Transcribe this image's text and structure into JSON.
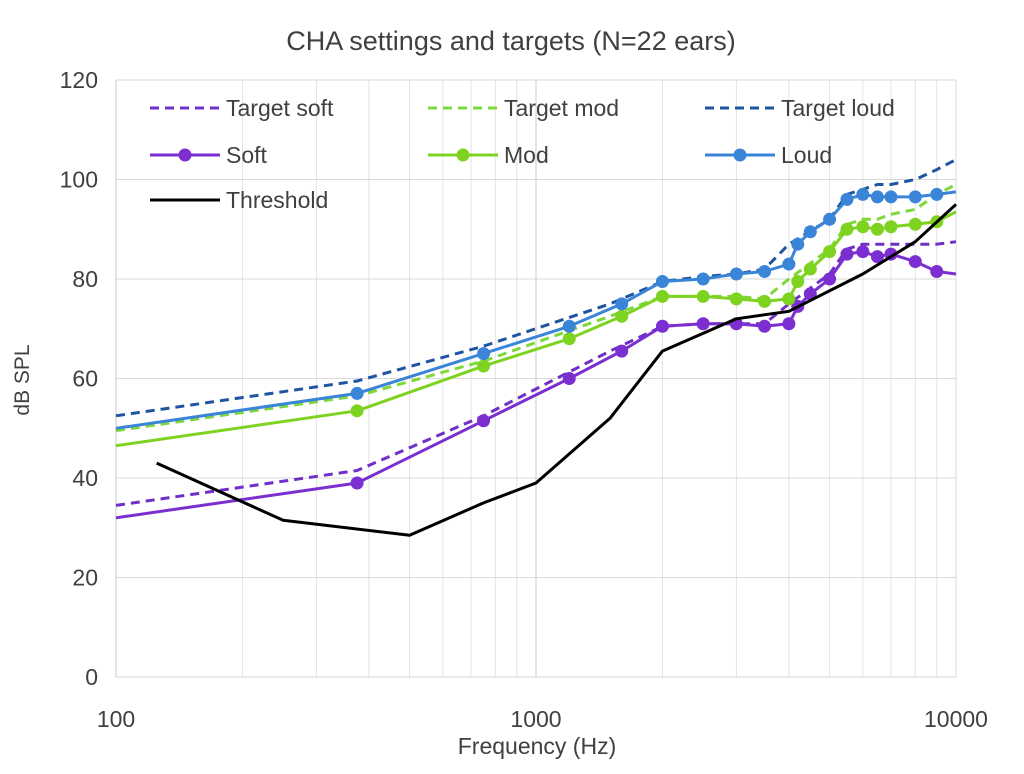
{
  "chart_data": {
    "type": "line",
    "title": "CHA settings and targets (N=22 ears)",
    "xlabel": "Frequency (Hz)",
    "ylabel": "dB SPL",
    "xscale": "log",
    "xlim": [
      100,
      10000
    ],
    "ylim": [
      0,
      120
    ],
    "xticks": [
      100,
      1000,
      10000
    ],
    "xtick_labels": [
      "100",
      "1000",
      "10000"
    ],
    "yticks": [
      0,
      20,
      40,
      60,
      80,
      100,
      120
    ],
    "ytick_labels": [
      "0",
      "20",
      "40",
      "60",
      "80",
      "100",
      "120"
    ],
    "grid": true,
    "legend_position": "top-left inside plot, three columns",
    "series": [
      {
        "name": "Target soft",
        "color": "#7030c8",
        "dashed": true,
        "markers": false,
        "x": [
          100,
          375,
          750,
          1500,
          2000,
          2500,
          3000,
          3500,
          4000,
          5000,
          5500,
          6000,
          6500,
          7000,
          8000,
          9000,
          10000
        ],
        "y": [
          34.5,
          41.5,
          52.5,
          65.5,
          70.5,
          71,
          71,
          71,
          75,
          81,
          86,
          87,
          87,
          87,
          87,
          87,
          87.5
        ]
      },
      {
        "name": "Target mod",
        "color": "#7fd83a",
        "dashed": true,
        "markers": false,
        "x": [
          100,
          375,
          750,
          1500,
          2000,
          2500,
          3000,
          3500,
          4000,
          5000,
          5500,
          6000,
          6500,
          7000,
          8000,
          9000,
          10000
        ],
        "y": [
          49.5,
          56.5,
          63.5,
          72.5,
          76.5,
          76.5,
          76.5,
          76,
          80,
          86,
          91,
          92,
          92,
          93,
          94,
          97,
          99
        ]
      },
      {
        "name": "Target loud",
        "color": "#1f55a0",
        "dashed": true,
        "markers": false,
        "x": [
          100,
          375,
          750,
          1500,
          2000,
          2500,
          3000,
          3500,
          4000,
          5000,
          5500,
          6000,
          6500,
          7000,
          8000,
          9000,
          10000
        ],
        "y": [
          52.5,
          59.5,
          66.5,
          75,
          79.5,
          80.5,
          81,
          82,
          87,
          92,
          97,
          98,
          99,
          99,
          100,
          102,
          104
        ]
      },
      {
        "name": "Soft",
        "color": "#7b2fd0",
        "dashed": false,
        "markers": true,
        "x": [
          100,
          375,
          750,
          1200,
          1600,
          2000,
          2500,
          3000,
          3500,
          4000,
          4200,
          4500,
          5000,
          5500,
          6000,
          6500,
          7000,
          8000,
          9000,
          10000
        ],
        "y": [
          32,
          39,
          51.5,
          60,
          65.5,
          70.5,
          71,
          71,
          70.5,
          71,
          74.5,
          77,
          80,
          85,
          85.5,
          84.5,
          85,
          83.5,
          81.5,
          81
        ]
      },
      {
        "name": "Mod",
        "color": "#7ed321",
        "dashed": false,
        "markers": true,
        "x": [
          100,
          375,
          750,
          1200,
          1600,
          2000,
          2500,
          3000,
          3500,
          4000,
          4200,
          4500,
          5000,
          5500,
          6000,
          6500,
          7000,
          8000,
          9000,
          10000
        ],
        "y": [
          46.5,
          53.5,
          62.5,
          68,
          72.5,
          76.5,
          76.5,
          76,
          75.5,
          76,
          79.5,
          82,
          85.5,
          90,
          90.5,
          90,
          90.5,
          91,
          91.5,
          93.5
        ]
      },
      {
        "name": "Loud",
        "color": "#3a85d8",
        "dashed": false,
        "markers": true,
        "x": [
          100,
          375,
          750,
          1200,
          1600,
          2000,
          2500,
          3000,
          3500,
          4000,
          4200,
          4500,
          5000,
          5500,
          6000,
          6500,
          7000,
          8000,
          9000,
          10000
        ],
        "y": [
          50,
          57,
          65,
          70.5,
          75,
          79.5,
          80,
          81,
          81.5,
          83,
          87,
          89.5,
          92,
          96,
          97,
          96.5,
          96.5,
          96.5,
          97,
          97.5
        ]
      },
      {
        "name": "Threshold",
        "color": "#000000",
        "dashed": false,
        "markers": false,
        "x": [
          125,
          250,
          500,
          750,
          1000,
          1500,
          2000,
          3000,
          4000,
          6000,
          8000,
          10000
        ],
        "y": [
          43,
          31.5,
          28.5,
          35,
          39,
          52,
          65.5,
          72,
          73.5,
          81,
          87.5,
          95
        ]
      }
    ]
  }
}
